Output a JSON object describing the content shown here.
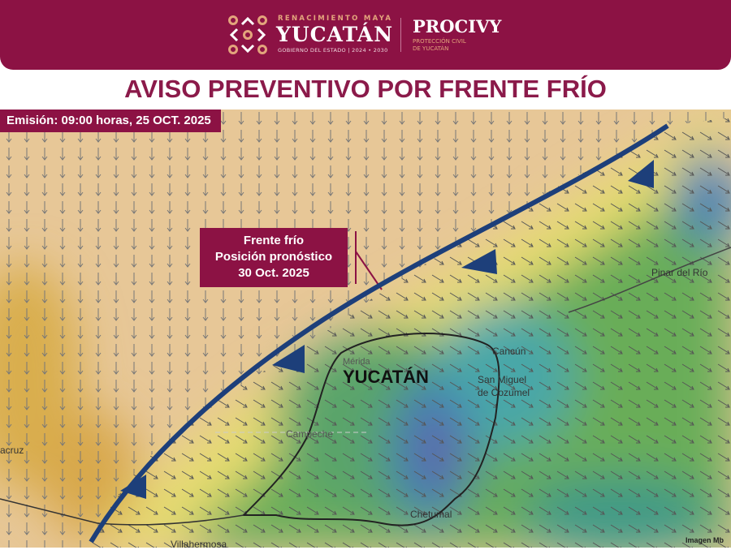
{
  "header": {
    "tagline": "RENACIMIENTO MAYA",
    "state": "YUCATÁN",
    "government": "GOBIERNO DEL ESTADO | 2024 • 2030",
    "agency": "PROCIVY",
    "agency_sub1": "PROTECCIÓN CIVIL",
    "agency_sub2": "DE YUCATÁN"
  },
  "title": "AVISO PREVENTIVO POR FRENTE FRÍO",
  "emission": "Emisión: 09:00 horas, 25 OCT. 2025",
  "front_label": {
    "line1": "Frente frío",
    "line2": "Posición pronóstico",
    "line3": "30 Oct. 2025"
  },
  "places": {
    "yucatan": "YUCATÁN",
    "merida": "Mérida",
    "cancun": "Cancún",
    "cozumel1": "San Miguel",
    "cozumel2": "de Cozumel",
    "campeche": "Campeche",
    "chetumal": "Chetumal",
    "pinar": "Pinar del Río",
    "villahermosa": "Villahermosa",
    "veracruz": "acruz"
  },
  "credit": "Imagen Mb",
  "colors": {
    "brand": "#8c1244",
    "front": "#1d3f7a"
  }
}
